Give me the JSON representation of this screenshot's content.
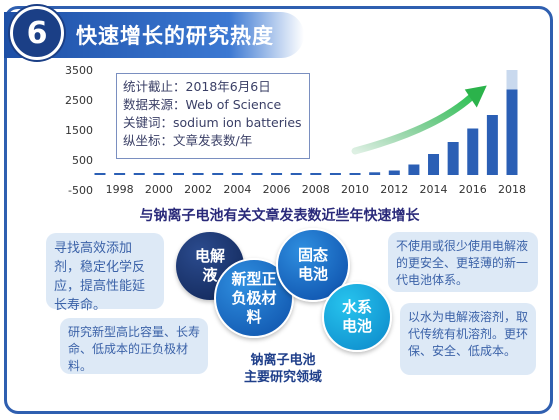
{
  "header": {
    "number": "6",
    "title": "快速增长的研究热度"
  },
  "info_box": {
    "line1": "统计截止：2018年6月6日",
    "line2": "数据来源：Web of Science",
    "line3": "关键词：sodium ion batteries",
    "line4": "纵坐标：文章发表数/年"
  },
  "caption": "与钠离子电池有关文章发表数近些年快速增长",
  "chart_data": {
    "type": "bar",
    "x": [
      1997,
      1998,
      1999,
      2000,
      2001,
      2002,
      2003,
      2004,
      2005,
      2006,
      2007,
      2008,
      2009,
      2010,
      2011,
      2012,
      2013,
      2014,
      2015,
      2016,
      2017,
      2018
    ],
    "values": [
      5,
      5,
      6,
      7,
      8,
      10,
      12,
      15,
      18,
      22,
      28,
      35,
      45,
      60,
      90,
      150,
      350,
      700,
      1100,
      1550,
      2000,
      2850
    ],
    "projected_2018": 3500,
    "x_tick_labels": [
      "1998",
      "2000",
      "2002",
      "2004",
      "2006",
      "2008",
      "2010",
      "2012",
      "2014",
      "2016",
      "2018"
    ],
    "y_tick_labels": [
      "3500",
      "2500",
      "1500",
      "500",
      "-500"
    ],
    "ylim": [
      -500,
      3500
    ],
    "grid": false,
    "colors": {
      "bar": "#2b5fb5",
      "projection": "#c9d9ee",
      "arrow": "#2bb34b"
    }
  },
  "notes": {
    "left_top": "寻找高效添加剂，稳定化学反应，提高性能延长寿命。",
    "left_bottom": "研究新型高比容量、长寿命、低成本的正负极材料。",
    "right_top": "不使用或很少使用电解液的更安全、更轻薄的新一代电池体系。",
    "right_bottom": "以水为电解液溶剂，取代传统有机溶剂。更环保、安全、低成本。"
  },
  "circles": {
    "electrolyte": "电解液",
    "new_electrode": "新型正负极材料",
    "solid_state": "固态电池",
    "aqueous": "水系电池"
  },
  "center_caption": {
    "line1": "钠离子电池",
    "line2": "主要研究领域"
  }
}
